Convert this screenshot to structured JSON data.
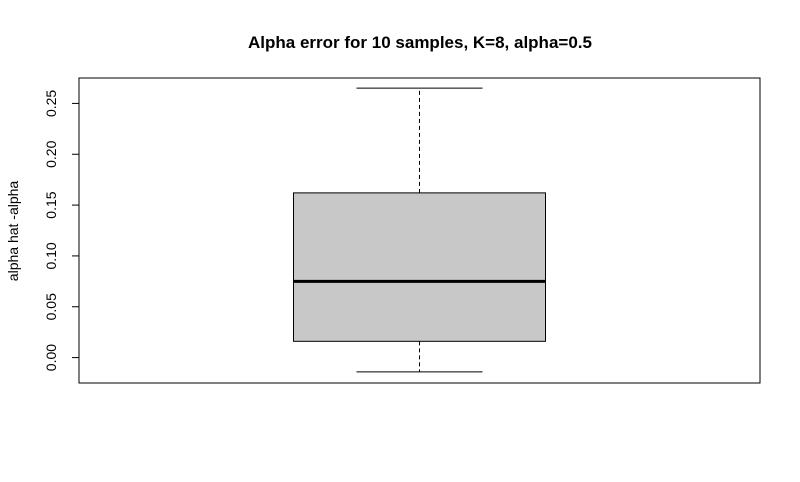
{
  "chart_data": {
    "type": "box",
    "title": "Alpha error for 10 samples, K=8, alpha=0.5",
    "xlabel": "",
    "ylabel": "alpha hat -alpha",
    "ylim": [
      -0.025,
      0.275
    ],
    "yticks": [
      0.0,
      0.05,
      0.1,
      0.15,
      0.2,
      0.25
    ],
    "ytick_labels": [
      "0.00",
      "0.05",
      "0.10",
      "0.15",
      "0.20",
      "0.25"
    ],
    "box": {
      "min": -0.014,
      "q1": 0.016,
      "median": 0.075,
      "q3": 0.162,
      "max": 0.265
    },
    "colors": {
      "box_fill": "#c8c8c8",
      "stroke": "#000000"
    },
    "grid": false
  }
}
